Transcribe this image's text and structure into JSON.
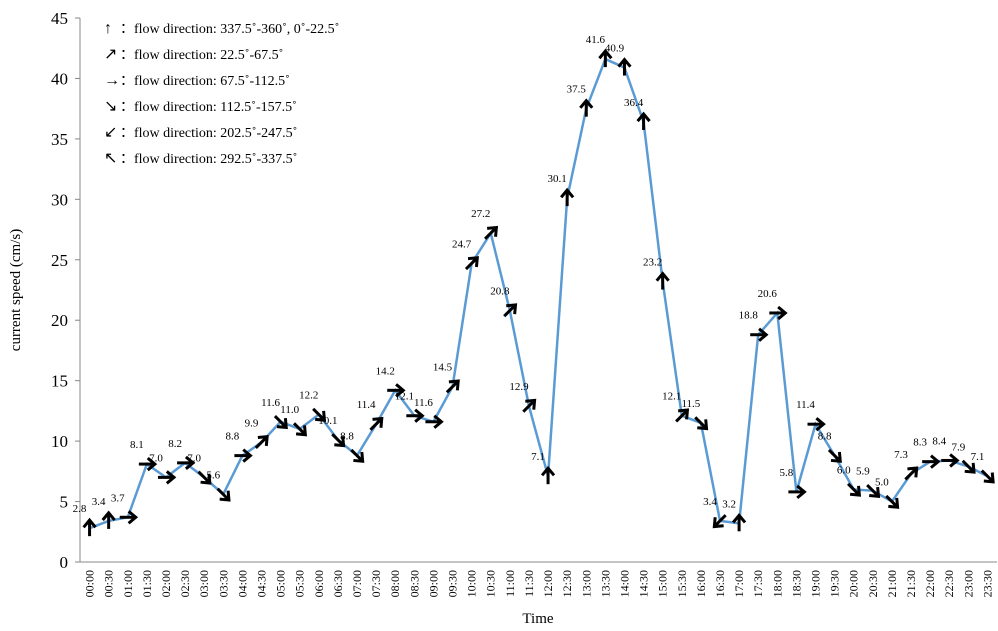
{
  "chart_data": {
    "type": "line",
    "xlabel": "Time",
    "ylabel": "current speed (cm/s)",
    "categories": [
      "00:00",
      "00:30",
      "01:00",
      "01:30",
      "02:00",
      "02:30",
      "03:00",
      "03:30",
      "04:00",
      "04:30",
      "05:00",
      "05:30",
      "06:00",
      "06:30",
      "07:00",
      "07:30",
      "08:00",
      "08:30",
      "09:00",
      "09:30",
      "10:00",
      "10:30",
      "11:00",
      "11:30",
      "12:00",
      "12:30",
      "13:00",
      "13:30",
      "14:00",
      "14:30",
      "15:00",
      "15:30",
      "16:00",
      "16:30",
      "17:00",
      "17:30",
      "18:00",
      "18:30",
      "19:00",
      "19:30",
      "20:00",
      "20:30",
      "21:00",
      "21:30",
      "22:00",
      "22:30",
      "23:00",
      "23:30"
    ],
    "values": [
      2.8,
      3.4,
      3.7,
      8.1,
      7.0,
      8.2,
      7.0,
      5.6,
      8.8,
      9.9,
      11.6,
      11.0,
      12.2,
      10.1,
      8.8,
      11.4,
      14.2,
      12.1,
      11.6,
      14.5,
      24.7,
      27.2,
      20.8,
      12.9,
      7.1,
      30.1,
      37.5,
      41.6,
      40.9,
      36.4,
      23.2,
      12.1,
      11.5,
      3.4,
      3.2,
      18.8,
      20.6,
      5.8,
      11.4,
      8.8,
      6.0,
      5.9,
      5.0,
      7.3,
      8.3,
      8.4,
      7.9,
      7.1
    ],
    "value_labels": [
      "2.8",
      "3.4",
      "3.7",
      "8.1",
      "7.0",
      "8.2",
      "7.0",
      "5.6",
      "8.8",
      "9.9",
      "11.6",
      "11.0",
      "12.2",
      "10.1",
      "8.8",
      "11.4",
      "14.2",
      "12.1",
      "11.6",
      "14.5",
      "24.7",
      "27.2",
      "20.8",
      "12.9",
      "7.1",
      "30.1",
      "37.5",
      "41.6",
      "40.9",
      "36.4",
      "23.2",
      "12.1",
      "11.5",
      "3.4",
      "3.2",
      "18.8",
      "20.6",
      "5.8",
      "11.4",
      "8.8",
      "6.0",
      "5.9",
      "5.0",
      "7.3",
      "8.3",
      "8.4",
      "7.9",
      "7.1"
    ],
    "directions": [
      "↑",
      "↑",
      "→",
      "→",
      "→",
      "→",
      "↘",
      "↘",
      "→",
      "↗",
      "↘",
      "↘",
      "↘",
      "↘",
      "↘",
      "↗",
      "→",
      "→",
      "→",
      "↗",
      "↗",
      "↗",
      "↗",
      "↗",
      "↑",
      "↑",
      "↑",
      "↑",
      "↑",
      "↑",
      "↑",
      "↗",
      "↘",
      "↙",
      "↑",
      "→",
      "→",
      "→",
      "→",
      "↘",
      "↘",
      "↘",
      "↘",
      "↗",
      "→",
      "→",
      "↘",
      "↘"
    ],
    "legend": [
      {
        "symbol": "↑",
        "label": "：flow direction: 337.5˚-360˚, 0˚-22.5˚"
      },
      {
        "symbol": "↗",
        "label": "：flow direction: 22.5˚-67.5˚"
      },
      {
        "symbol": "→",
        "label": "：flow direction: 67.5˚-112.5˚"
      },
      {
        "symbol": "↘",
        "label": "：flow direction: 112.5˚-157.5˚"
      },
      {
        "symbol": "↙",
        "label": "：flow direction: 202.5˚-247.5˚"
      },
      {
        "symbol": "↖",
        "label": "：flow direction: 292.5˚-337.5˚"
      }
    ],
    "color": "#5b9bd5",
    "ylim": [
      0,
      45
    ],
    "yticks": [
      0,
      5,
      10,
      15,
      20,
      25,
      30,
      35,
      40,
      45
    ]
  }
}
